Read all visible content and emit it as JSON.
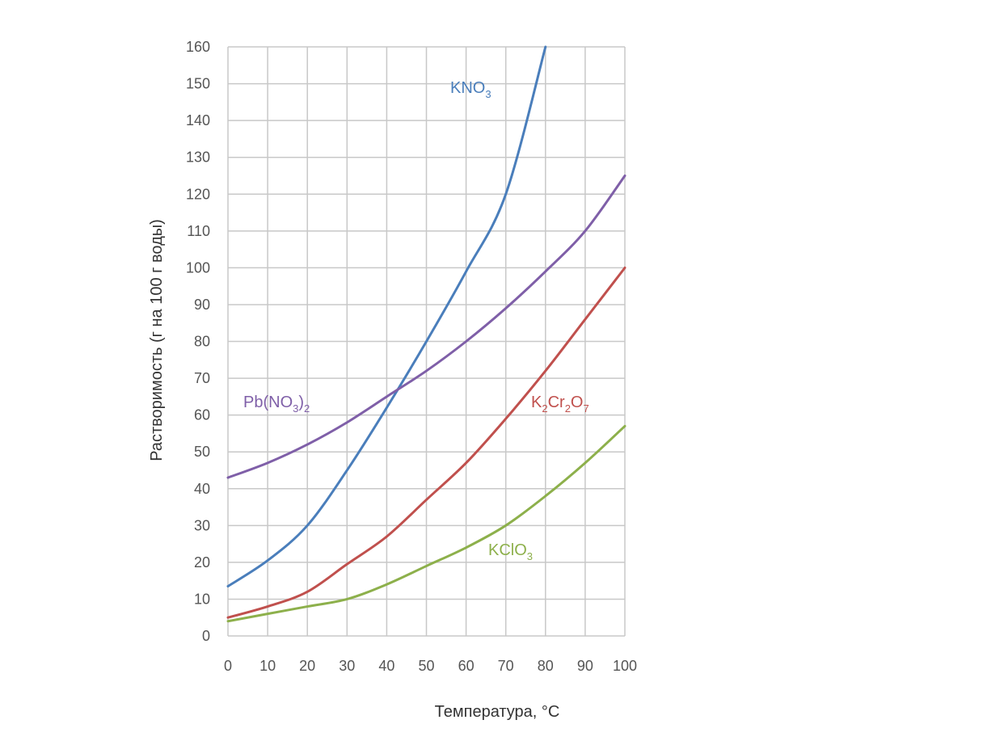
{
  "chart_data": {
    "type": "line",
    "xlabel": "Температура, °C",
    "ylabel": "Растворимость (г на 100 г воды)",
    "xlim": [
      0,
      100
    ],
    "ylim": [
      0,
      160
    ],
    "x_ticks": [
      "0",
      "10",
      "20",
      "30",
      "40",
      "50",
      "60",
      "70",
      "80",
      "90",
      "100"
    ],
    "y_ticks": [
      "0",
      "10",
      "20",
      "30",
      "40",
      "50",
      "60",
      "70",
      "80",
      "90",
      "100",
      "110",
      "120",
      "130",
      "140",
      "150",
      "160"
    ],
    "grid": true,
    "series": [
      {
        "name": "KNO3",
        "label_parts": [
          {
            "t": "KNO",
            "sub": false
          },
          {
            "t": "3",
            "sub": true
          }
        ],
        "color": "#4a7ebb",
        "x": [
          0,
          10,
          20,
          30,
          40,
          50,
          60,
          70,
          80
        ],
        "y": [
          13.5,
          20.5,
          30,
          45,
          62,
          80,
          99,
          120,
          160
        ]
      },
      {
        "name": "Pb(NO3)2",
        "label_parts": [
          {
            "t": "Pb(NO",
            "sub": false
          },
          {
            "t": "3",
            "sub": true
          },
          {
            "t": ")",
            "sub": false
          },
          {
            "t": "2",
            "sub": true
          }
        ],
        "color": "#7f5fa8",
        "x": [
          0,
          10,
          20,
          30,
          40,
          50,
          60,
          70,
          80,
          90,
          100
        ],
        "y": [
          43,
          47,
          52,
          58,
          65,
          72,
          80,
          89,
          99,
          110,
          125
        ]
      },
      {
        "name": "K2Cr2O7",
        "label_parts": [
          {
            "t": "K",
            "sub": false
          },
          {
            "t": "2",
            "sub": true
          },
          {
            "t": "Cr",
            "sub": false
          },
          {
            "t": "2",
            "sub": true
          },
          {
            "t": "O",
            "sub": false
          },
          {
            "t": "7",
            "sub": true
          }
        ],
        "color": "#c0504d",
        "x": [
          0,
          10,
          20,
          30,
          40,
          50,
          60,
          70,
          80,
          90,
          100
        ],
        "y": [
          5,
          8,
          12,
          19.5,
          27,
          37,
          47,
          59,
          72,
          86,
          100
        ]
      },
      {
        "name": "KClO3",
        "label_parts": [
          {
            "t": "KClO",
            "sub": false
          },
          {
            "t": "3",
            "sub": true
          }
        ],
        "color": "#8db04b",
        "x": [
          0,
          10,
          20,
          30,
          40,
          50,
          60,
          70,
          80,
          90,
          100
        ],
        "y": [
          4,
          6,
          8,
          10,
          14,
          19,
          24,
          30,
          38,
          47,
          57
        ]
      }
    ]
  }
}
